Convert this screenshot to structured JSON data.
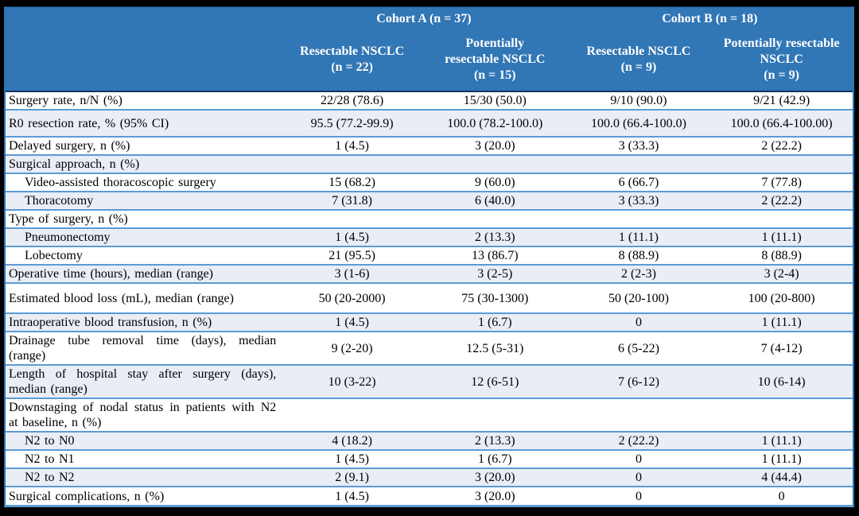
{
  "colors": {
    "header_bg": "#3176B5",
    "header_text": "#FFFFFF",
    "band_bg": "#E9EDF6",
    "row_border": "#5B9BD5",
    "outer_border": "#2E75B6",
    "header_divider": "#17375E",
    "frame_bg": "#000000",
    "body_text": "#000000"
  },
  "header": {
    "cohort_a": "Cohort A (n = 37)",
    "cohort_b": "Cohort B (n = 18)",
    "subcolumns": [
      {
        "lines": [
          "Resectable NSCLC",
          "(n = 22)"
        ]
      },
      {
        "lines": [
          "Potentially",
          "resectable NSCLC",
          "(n = 15)"
        ]
      },
      {
        "lines": [
          "Resectable NSCLC",
          "(n = 9)"
        ]
      },
      {
        "lines": [
          "Potentially resectable",
          "NSCLC",
          "(n = 9)"
        ]
      }
    ]
  },
  "rows": [
    {
      "label": "Surgery rate, n/N (%)",
      "values": [
        "22/28 (78.6)",
        "15/30 (50.0)",
        "9/10 (90.0)",
        "9/21 (42.9)"
      ]
    },
    {
      "label": "R0 resection rate, % (95% CI)",
      "values": [
        "95.5 (77.2-99.9)",
        "100.0 (78.2-100.0)",
        "100.0 (66.4-100.0)",
        "100.0 (66.4-100.00)"
      ]
    },
    {
      "label": "Delayed surgery, n (%)",
      "values": [
        "1 (4.5)",
        "3 (20.0)",
        "3 (33.3)",
        "2 (22.2)"
      ]
    },
    {
      "label": "Surgical approach, n (%)",
      "values": [
        "",
        "",
        "",
        ""
      ]
    },
    {
      "label": "Video-assisted thoracoscopic surgery",
      "values": [
        "15 (68.2)",
        "9 (60.0)",
        "6 (66.7)",
        "7 (77.8)"
      ]
    },
    {
      "label": "Thoracotomy",
      "values": [
        "7 (31.8)",
        "6 (40.0)",
        "3 (33.3)",
        "2 (22.2)"
      ]
    },
    {
      "label": "Type of surgery, n (%)",
      "values": [
        "",
        "",
        "",
        ""
      ]
    },
    {
      "label": "Pneumonectomy",
      "values": [
        "1 (4.5)",
        "2 (13.3)",
        "1 (11.1)",
        "1 (11.1)"
      ]
    },
    {
      "label": "Lobectomy",
      "values": [
        "21 (95.5)",
        "13 (86.7)",
        "8 (88.9)",
        "8 (88.9)"
      ]
    },
    {
      "label": "Operative time (hours), median (range)",
      "values": [
        "3 (1-6)",
        "3 (2-5)",
        "2 (2-3)",
        "3 (2-4)"
      ]
    },
    {
      "label": "Estimated blood loss (mL), median (range)",
      "values": [
        "50 (20-2000)",
        "75 (30-1300)",
        "50 (20-100)",
        "100 (20-800)"
      ]
    },
    {
      "label": "Intraoperative blood transfusion, n (%)",
      "values": [
        "1 (4.5)",
        "1 (6.7)",
        "0",
        "1 (11.1)"
      ]
    },
    {
      "label": "Drainage tube removal time (days), median (range)",
      "values": [
        "9 (2-20)",
        "12.5 (5-31)",
        "6 (5-22)",
        "7 (4-12)"
      ]
    },
    {
      "label": "Length of hospital stay after surgery (days), median (range)",
      "values": [
        "10 (3-22)",
        "12 (6-51)",
        "7 (6-12)",
        "10 (6-14)"
      ]
    },
    {
      "label": "Downstaging of nodal status in patients with N2 at baseline, n (%)",
      "values": [
        "",
        "",
        "",
        ""
      ]
    },
    {
      "label": "N2 to N0",
      "values": [
        "4 (18.2)",
        "2 (13.3)",
        "2 (22.2)",
        "1 (11.1)"
      ]
    },
    {
      "label": "N2 to N1",
      "values": [
        "1 (4.5)",
        "1 (6.7)",
        "0",
        "1 (11.1)"
      ]
    },
    {
      "label": "N2 to N2",
      "values": [
        "2 (9.1)",
        "3 (20.0)",
        "0",
        "4 (44.4)"
      ]
    },
    {
      "label": "Surgical complications, n (%)",
      "values": [
        "1 (4.5)",
        "3 (20.0)",
        "0",
        "0"
      ]
    }
  ]
}
